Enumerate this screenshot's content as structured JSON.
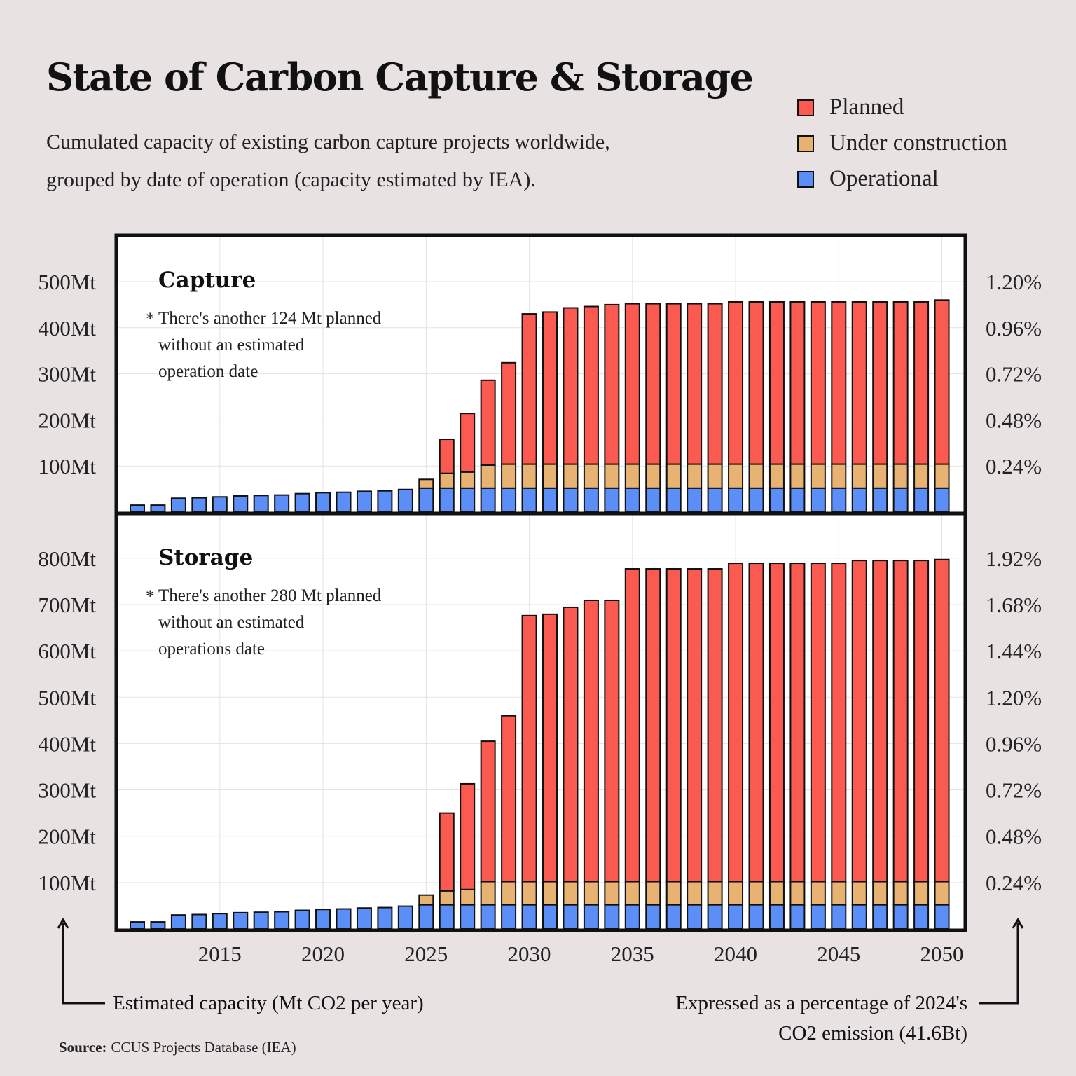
{
  "header": {
    "title": "State of Carbon Capture & Storage",
    "subtitle_line1": "Cumulated capacity of existing carbon capture projects worldwide,",
    "subtitle_line2": "grouped by date of operation (capacity estimated by IEA)."
  },
  "legend": [
    {
      "label": "Planned",
      "color": "#fa5a4f"
    },
    {
      "label": "Under construction",
      "color": "#e8b272"
    },
    {
      "label": "Operational",
      "color": "#5b8ef7"
    }
  ],
  "left_axis_caption": "Estimated capacity (Mt CO2 per year)",
  "right_axis_caption_line1": "Expressed as a percentage of 2024's",
  "right_axis_caption_line2": "CO2 emission (41.6Bt)",
  "source_label": "Source:",
  "source_text": "CCUS Projects Database (IEA)",
  "chart_data": [
    {
      "type": "bar",
      "title": "Capture",
      "note_star": "*",
      "note_lines": [
        "There's another 124 Mt planned",
        "without an estimated",
        "operation date"
      ],
      "x": [
        2011,
        2012,
        2013,
        2014,
        2015,
        2016,
        2017,
        2018,
        2019,
        2020,
        2021,
        2022,
        2023,
        2024,
        2025,
        2026,
        2027,
        2028,
        2029,
        2030,
        2031,
        2032,
        2033,
        2034,
        2035,
        2036,
        2037,
        2038,
        2039,
        2040,
        2041,
        2042,
        2043,
        2044,
        2045,
        2046,
        2047,
        2048,
        2049,
        2050
      ],
      "x_ticks": [
        "2015",
        "2020",
        "2025",
        "2030",
        "2035",
        "2040",
        "2045",
        "2050"
      ],
      "series": [
        {
          "name": "Operational",
          "values": [
            15,
            15,
            30,
            31,
            33,
            35,
            36,
            37,
            40,
            42,
            43,
            45,
            46,
            49,
            52,
            52,
            52,
            52,
            52,
            52,
            52,
            52,
            52,
            52,
            52,
            52,
            52,
            52,
            52,
            52,
            52,
            52,
            52,
            52,
            52,
            52,
            52,
            52,
            52,
            52
          ]
        },
        {
          "name": "Under construction",
          "values": [
            0,
            0,
            0,
            0,
            0,
            0,
            0,
            0,
            0,
            0,
            0,
            0,
            0,
            0,
            19,
            32,
            35,
            50,
            52,
            52,
            52,
            52,
            52,
            52,
            52,
            52,
            52,
            52,
            52,
            52,
            52,
            52,
            52,
            52,
            52,
            52,
            52,
            52,
            52,
            52
          ]
        },
        {
          "name": "Planned",
          "values": [
            0,
            0,
            0,
            0,
            0,
            0,
            0,
            0,
            0,
            0,
            0,
            0,
            0,
            0,
            0,
            74,
            127,
            184,
            220,
            326,
            330,
            339,
            342,
            346,
            348,
            348,
            348,
            348,
            348,
            352,
            352,
            352,
            352,
            352,
            352,
            352,
            352,
            352,
            352,
            356
          ]
        }
      ],
      "yticks": [
        "100Mt",
        "200Mt",
        "300Mt",
        "400Mt",
        "500Mt"
      ],
      "ytick_values": [
        100,
        200,
        300,
        400,
        500
      ],
      "right_ticks": [
        "0.24%",
        "0.48%",
        "0.72%",
        "0.96%",
        "1.20%"
      ],
      "ylim": [
        0,
        500
      ]
    },
    {
      "type": "bar",
      "title": "Storage",
      "note_star": "*",
      "note_lines": [
        "There's another 280 Mt planned",
        "without an estimated",
        "operations date"
      ],
      "x": [
        2011,
        2012,
        2013,
        2014,
        2015,
        2016,
        2017,
        2018,
        2019,
        2020,
        2021,
        2022,
        2023,
        2024,
        2025,
        2026,
        2027,
        2028,
        2029,
        2030,
        2031,
        2032,
        2033,
        2034,
        2035,
        2036,
        2037,
        2038,
        2039,
        2040,
        2041,
        2042,
        2043,
        2044,
        2045,
        2046,
        2047,
        2048,
        2049,
        2050
      ],
      "x_ticks": [
        "2015",
        "2020",
        "2025",
        "2030",
        "2035",
        "2040",
        "2045",
        "2050"
      ],
      "series": [
        {
          "name": "Operational",
          "values": [
            15,
            15,
            30,
            31,
            33,
            35,
            36,
            37,
            40,
            42,
            43,
            45,
            46,
            49,
            52,
            52,
            52,
            52,
            52,
            52,
            52,
            52,
            52,
            52,
            52,
            52,
            52,
            52,
            52,
            52,
            52,
            52,
            52,
            52,
            52,
            52,
            52,
            52,
            52,
            52
          ]
        },
        {
          "name": "Under construction",
          "values": [
            0,
            0,
            0,
            0,
            0,
            0,
            0,
            0,
            0,
            0,
            0,
            0,
            0,
            0,
            21,
            30,
            33,
            50,
            50,
            50,
            50,
            50,
            50,
            50,
            50,
            50,
            50,
            50,
            50,
            50,
            50,
            50,
            50,
            50,
            50,
            50,
            50,
            50,
            50,
            50
          ]
        },
        {
          "name": "Planned",
          "values": [
            0,
            0,
            0,
            0,
            0,
            0,
            0,
            0,
            0,
            0,
            0,
            0,
            0,
            0,
            0,
            168,
            228,
            303,
            358,
            574,
            577,
            592,
            607,
            607,
            675,
            675,
            675,
            675,
            675,
            687,
            687,
            687,
            687,
            687,
            687,
            693,
            693,
            693,
            693,
            695
          ]
        }
      ],
      "yticks": [
        "100Mt",
        "200Mt",
        "300Mt",
        "400Mt",
        "500Mt",
        "600Mt",
        "700Mt",
        "800Mt"
      ],
      "ytick_values": [
        100,
        200,
        300,
        400,
        500,
        600,
        700,
        800
      ],
      "right_ticks": [
        "0.24%",
        "0.48%",
        "0.72%",
        "0.96%",
        "1.20%",
        "1.44%",
        "1.68%",
        "1.92%"
      ],
      "ylim": [
        0,
        800
      ]
    }
  ]
}
